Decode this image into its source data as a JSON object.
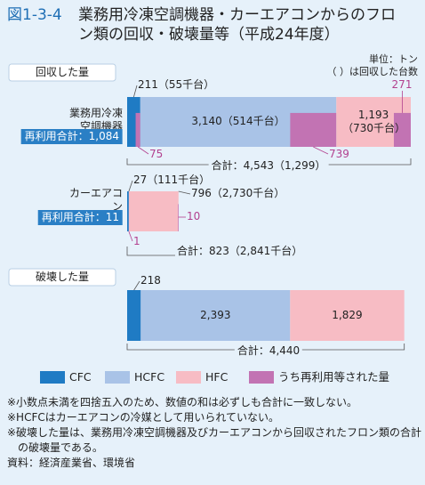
{
  "chart_data": {
    "type": "bar",
    "figure_no": "図1-3-4",
    "title": "業務用冷凍空調機器・カーエアコンからのフロン類の回収・破壊量等（平成24年度）",
    "unit_note": [
      "単位：トン",
      "（ ）は回収した台数"
    ],
    "series": [
      {
        "name": "CFC",
        "color": "#1f7bc4"
      },
      {
        "name": "HCFC",
        "color": "#a9c3e7"
      },
      {
        "name": "HFC",
        "color": "#f7bcc4"
      },
      {
        "name": "うち再利用等された量",
        "color": "#c273b3"
      }
    ],
    "sections": [
      {
        "label": "回収した量",
        "bars": [
          {
            "category": "業務用冷凍空調機器",
            "reuse_total": "再利用合計：1,084",
            "values": [
              211,
              3140,
              1193
            ],
            "value_labels": [
              "211（55千台）",
              "3,140（514千台）",
              "1,193（730千台）"
            ],
            "reused": [
              75,
              739,
              271
            ],
            "total": "合計：4,543（1,299）"
          },
          {
            "category": "カーエアコン",
            "reuse_total": "再利用合計：11",
            "values": [
              27,
              null,
              796
            ],
            "value_labels": [
              "27（111千台）",
              null,
              "796（2,730千台）"
            ],
            "reused": [
              1,
              null,
              10
            ],
            "total": "合計：823（2,841千台）"
          }
        ]
      },
      {
        "label": "破壊した量",
        "bars": [
          {
            "values": [
              218,
              2393,
              1829
            ],
            "value_labels": [
              "218",
              "2,393",
              "1,829"
            ],
            "total": "合計：4,440"
          }
        ]
      }
    ],
    "notes": [
      "※小数点未満を四捨五入のため、数値の和は必ずしも合計に一致しない。",
      "※HCFCはカーエアコンの冷媒として用いられていない。",
      "※破壊した量は、業務用冷凍空調機器及びカーエアコンから回収されたフロン類の合計の破壊量である。"
    ],
    "source": "資料：経済産業省、環境省"
  }
}
